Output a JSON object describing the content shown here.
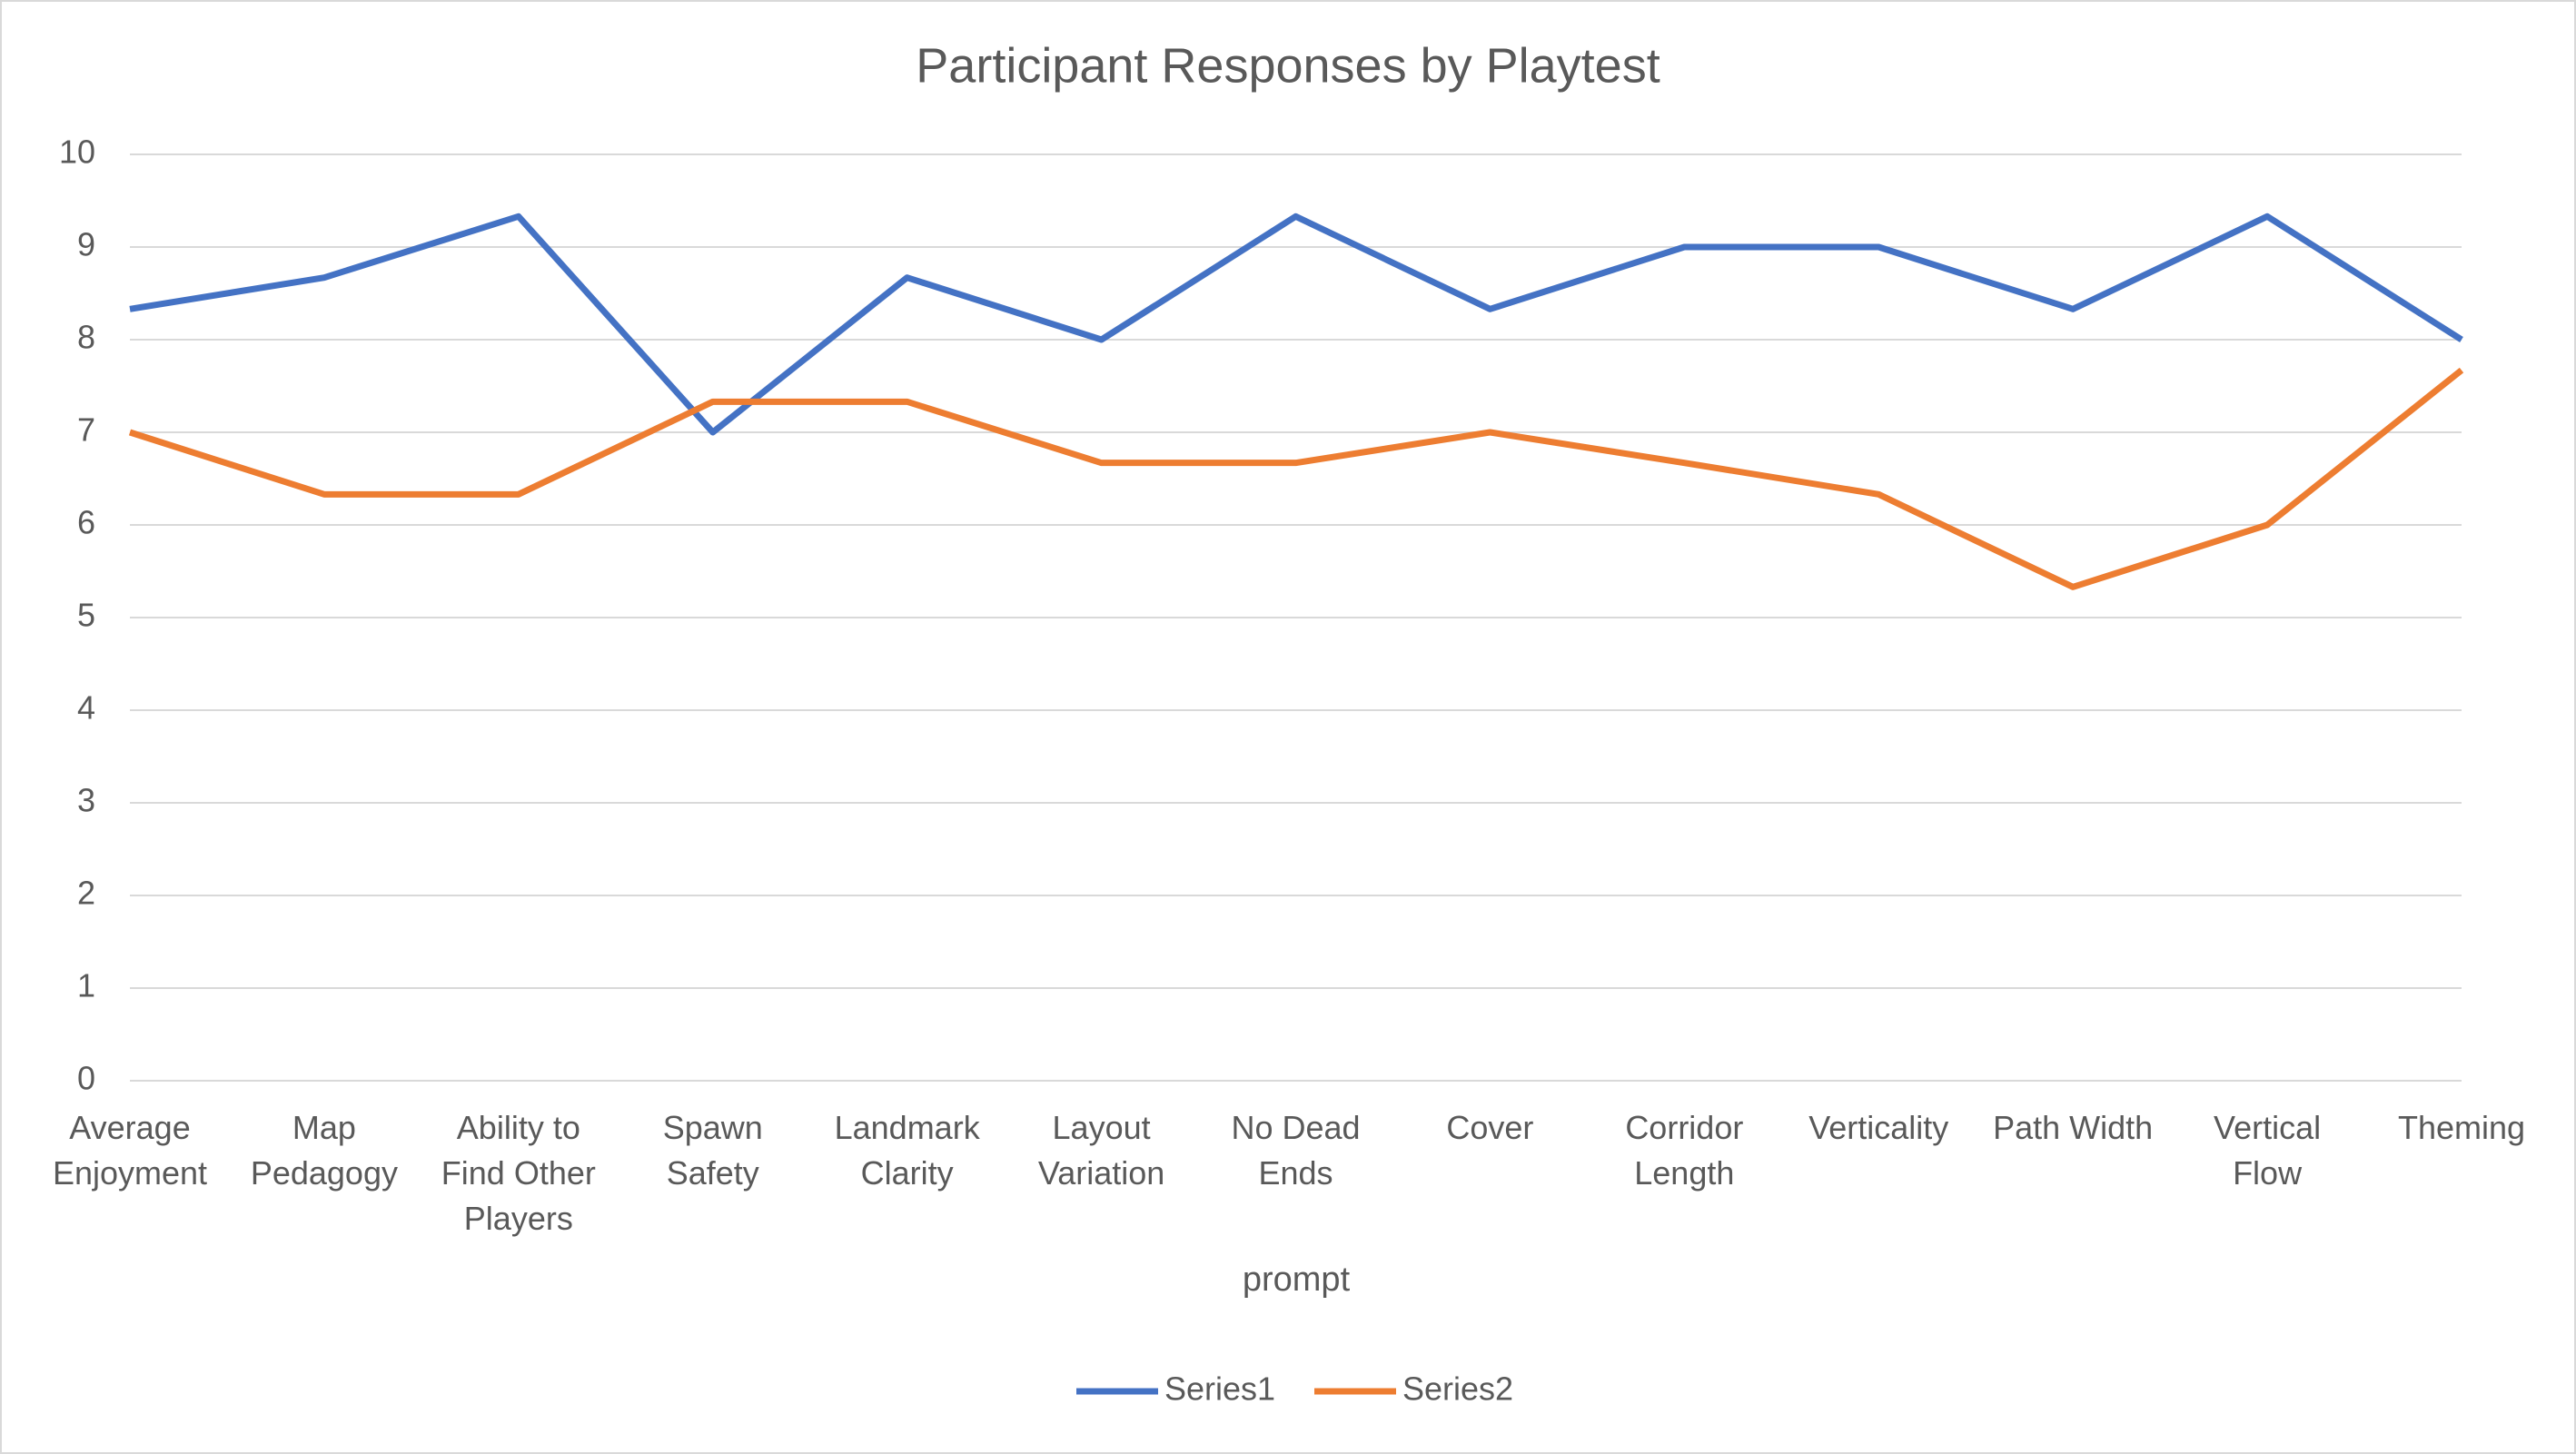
{
  "chart_data": {
    "type": "line",
    "title": "Participant Responses by Playtest",
    "x_label": "prompt",
    "categories": [
      "Average Enjoyment",
      "Map Pedagogy",
      "Ability to Find Other Players",
      "Spawn Safety",
      "Landmark Clarity",
      "Layout Variation",
      "No Dead Ends",
      "Cover",
      "Corridor Length",
      "Verticality",
      "Path Width",
      "Vertical Flow",
      "Theming"
    ],
    "series": [
      {
        "name": "Series1",
        "color": "#4472c4",
        "values": [
          8.33,
          8.67,
          9.33,
          7,
          8.67,
          8,
          9.33,
          8.33,
          9,
          9,
          8.33,
          9.33,
          8
        ]
      },
      {
        "name": "Series2",
        "color": "#ed7d31",
        "values": [
          7,
          6.33,
          6.33,
          7.33,
          7.33,
          6.67,
          6.67,
          7,
          6.67,
          6.33,
          5.33,
          6,
          7.67
        ]
      }
    ],
    "ylim": [
      0,
      10
    ],
    "yticks": [
      0,
      1,
      2,
      3,
      4,
      5,
      6,
      7,
      8,
      9,
      10
    ],
    "grid": true,
    "legend": "bottom"
  }
}
